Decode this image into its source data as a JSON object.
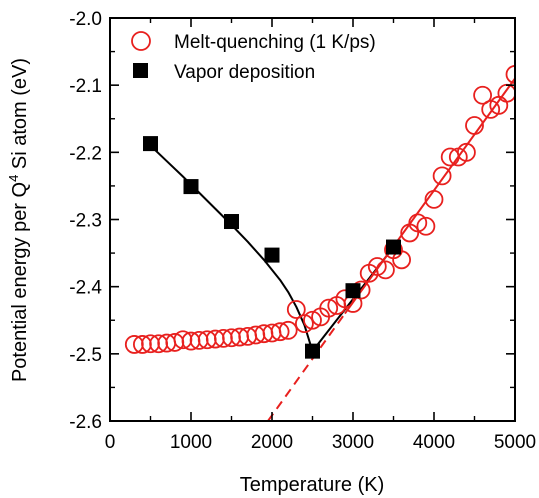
{
  "chart_data": {
    "type": "scatter",
    "xlabel": "Temperature (K)",
    "ylabel_main": "Potential energy per Q",
    "ylabel_sup": "4",
    "ylabel_tail": " Si atom (eV)",
    "xlim": [
      0,
      5000
    ],
    "ylim": [
      -2.6,
      -2.0
    ],
    "x_ticks": [
      0,
      1000,
      2000,
      3000,
      4000,
      5000
    ],
    "y_ticks": [
      -2.6,
      -2.5,
      -2.4,
      -2.3,
      -2.2,
      -2.1,
      -2.0
    ],
    "x_tick_labels": [
      "0",
      "1000",
      "2000",
      "3000",
      "4000",
      "5000"
    ],
    "y_tick_labels": [
      "-2.6",
      "-2.5",
      "-2.4",
      "-2.3",
      "-2.2",
      "-2.1",
      "-2.0"
    ],
    "grid": false,
    "legend_position": "top-left",
    "series": [
      {
        "name": "Melt-quenching (1 K/ps)",
        "marker": "open-circle",
        "color": "#e8201e",
        "x": [
          300,
          400,
          500,
          600,
          700,
          800,
          900,
          1000,
          1100,
          1200,
          1300,
          1400,
          1500,
          1600,
          1700,
          1800,
          1900,
          2000,
          2100,
          2200,
          2300,
          2400,
          2500,
          2600,
          2700,
          2800,
          2900,
          3000,
          3100,
          3200,
          3300,
          3400,
          3500,
          3600,
          3700,
          3800,
          3900,
          4000,
          4100,
          4200,
          4300,
          4400,
          4500,
          4600,
          4700,
          4800,
          4900,
          5000
        ],
        "y": [
          -2.486,
          -2.486,
          -2.485,
          -2.485,
          -2.484,
          -2.483,
          -2.479,
          -2.481,
          -2.48,
          -2.479,
          -2.478,
          -2.477,
          -2.476,
          -2.475,
          -2.474,
          -2.472,
          -2.47,
          -2.469,
          -2.467,
          -2.465,
          -2.434,
          -2.455,
          -2.45,
          -2.445,
          -2.432,
          -2.428,
          -2.418,
          -2.425,
          -2.405,
          -2.38,
          -2.37,
          -2.375,
          -2.345,
          -2.36,
          -2.32,
          -2.305,
          -2.31,
          -2.27,
          -2.235,
          -2.207,
          -2.207,
          -2.2,
          -2.16,
          -2.115,
          -2.136,
          -2.13,
          -2.112,
          -2.084
        ]
      },
      {
        "name": "Vapor deposition",
        "marker": "filled-square",
        "color": "#000000",
        "x": [
          500,
          1000,
          1500,
          2000,
          2500,
          3000,
          3500
        ],
        "y": [
          -2.187,
          -2.251,
          -2.303,
          -2.353,
          -2.496,
          -2.406,
          -2.341
        ]
      }
    ],
    "fit_lines": [
      {
        "style": "solid-black",
        "x": [
          500,
          700,
          900,
          1100,
          1300,
          1500,
          1700,
          1900,
          2100,
          2200,
          2300,
          2400,
          2500
        ],
        "y": [
          -2.19,
          -2.213,
          -2.236,
          -2.26,
          -2.284,
          -2.308,
          -2.333,
          -2.36,
          -2.39,
          -2.408,
          -2.43,
          -2.457,
          -2.496
        ]
      },
      {
        "style": "solid-black",
        "x": [
          2500,
          3500
        ],
        "y": [
          -2.496,
          -2.341
        ]
      },
      {
        "style": "solid-red",
        "x": [
          2900,
          5000
        ],
        "y": [
          -2.44,
          -2.09
        ]
      },
      {
        "style": "dashed-red",
        "x": [
          1950,
          2900
        ],
        "y": [
          -2.6,
          -2.44
        ]
      }
    ]
  }
}
